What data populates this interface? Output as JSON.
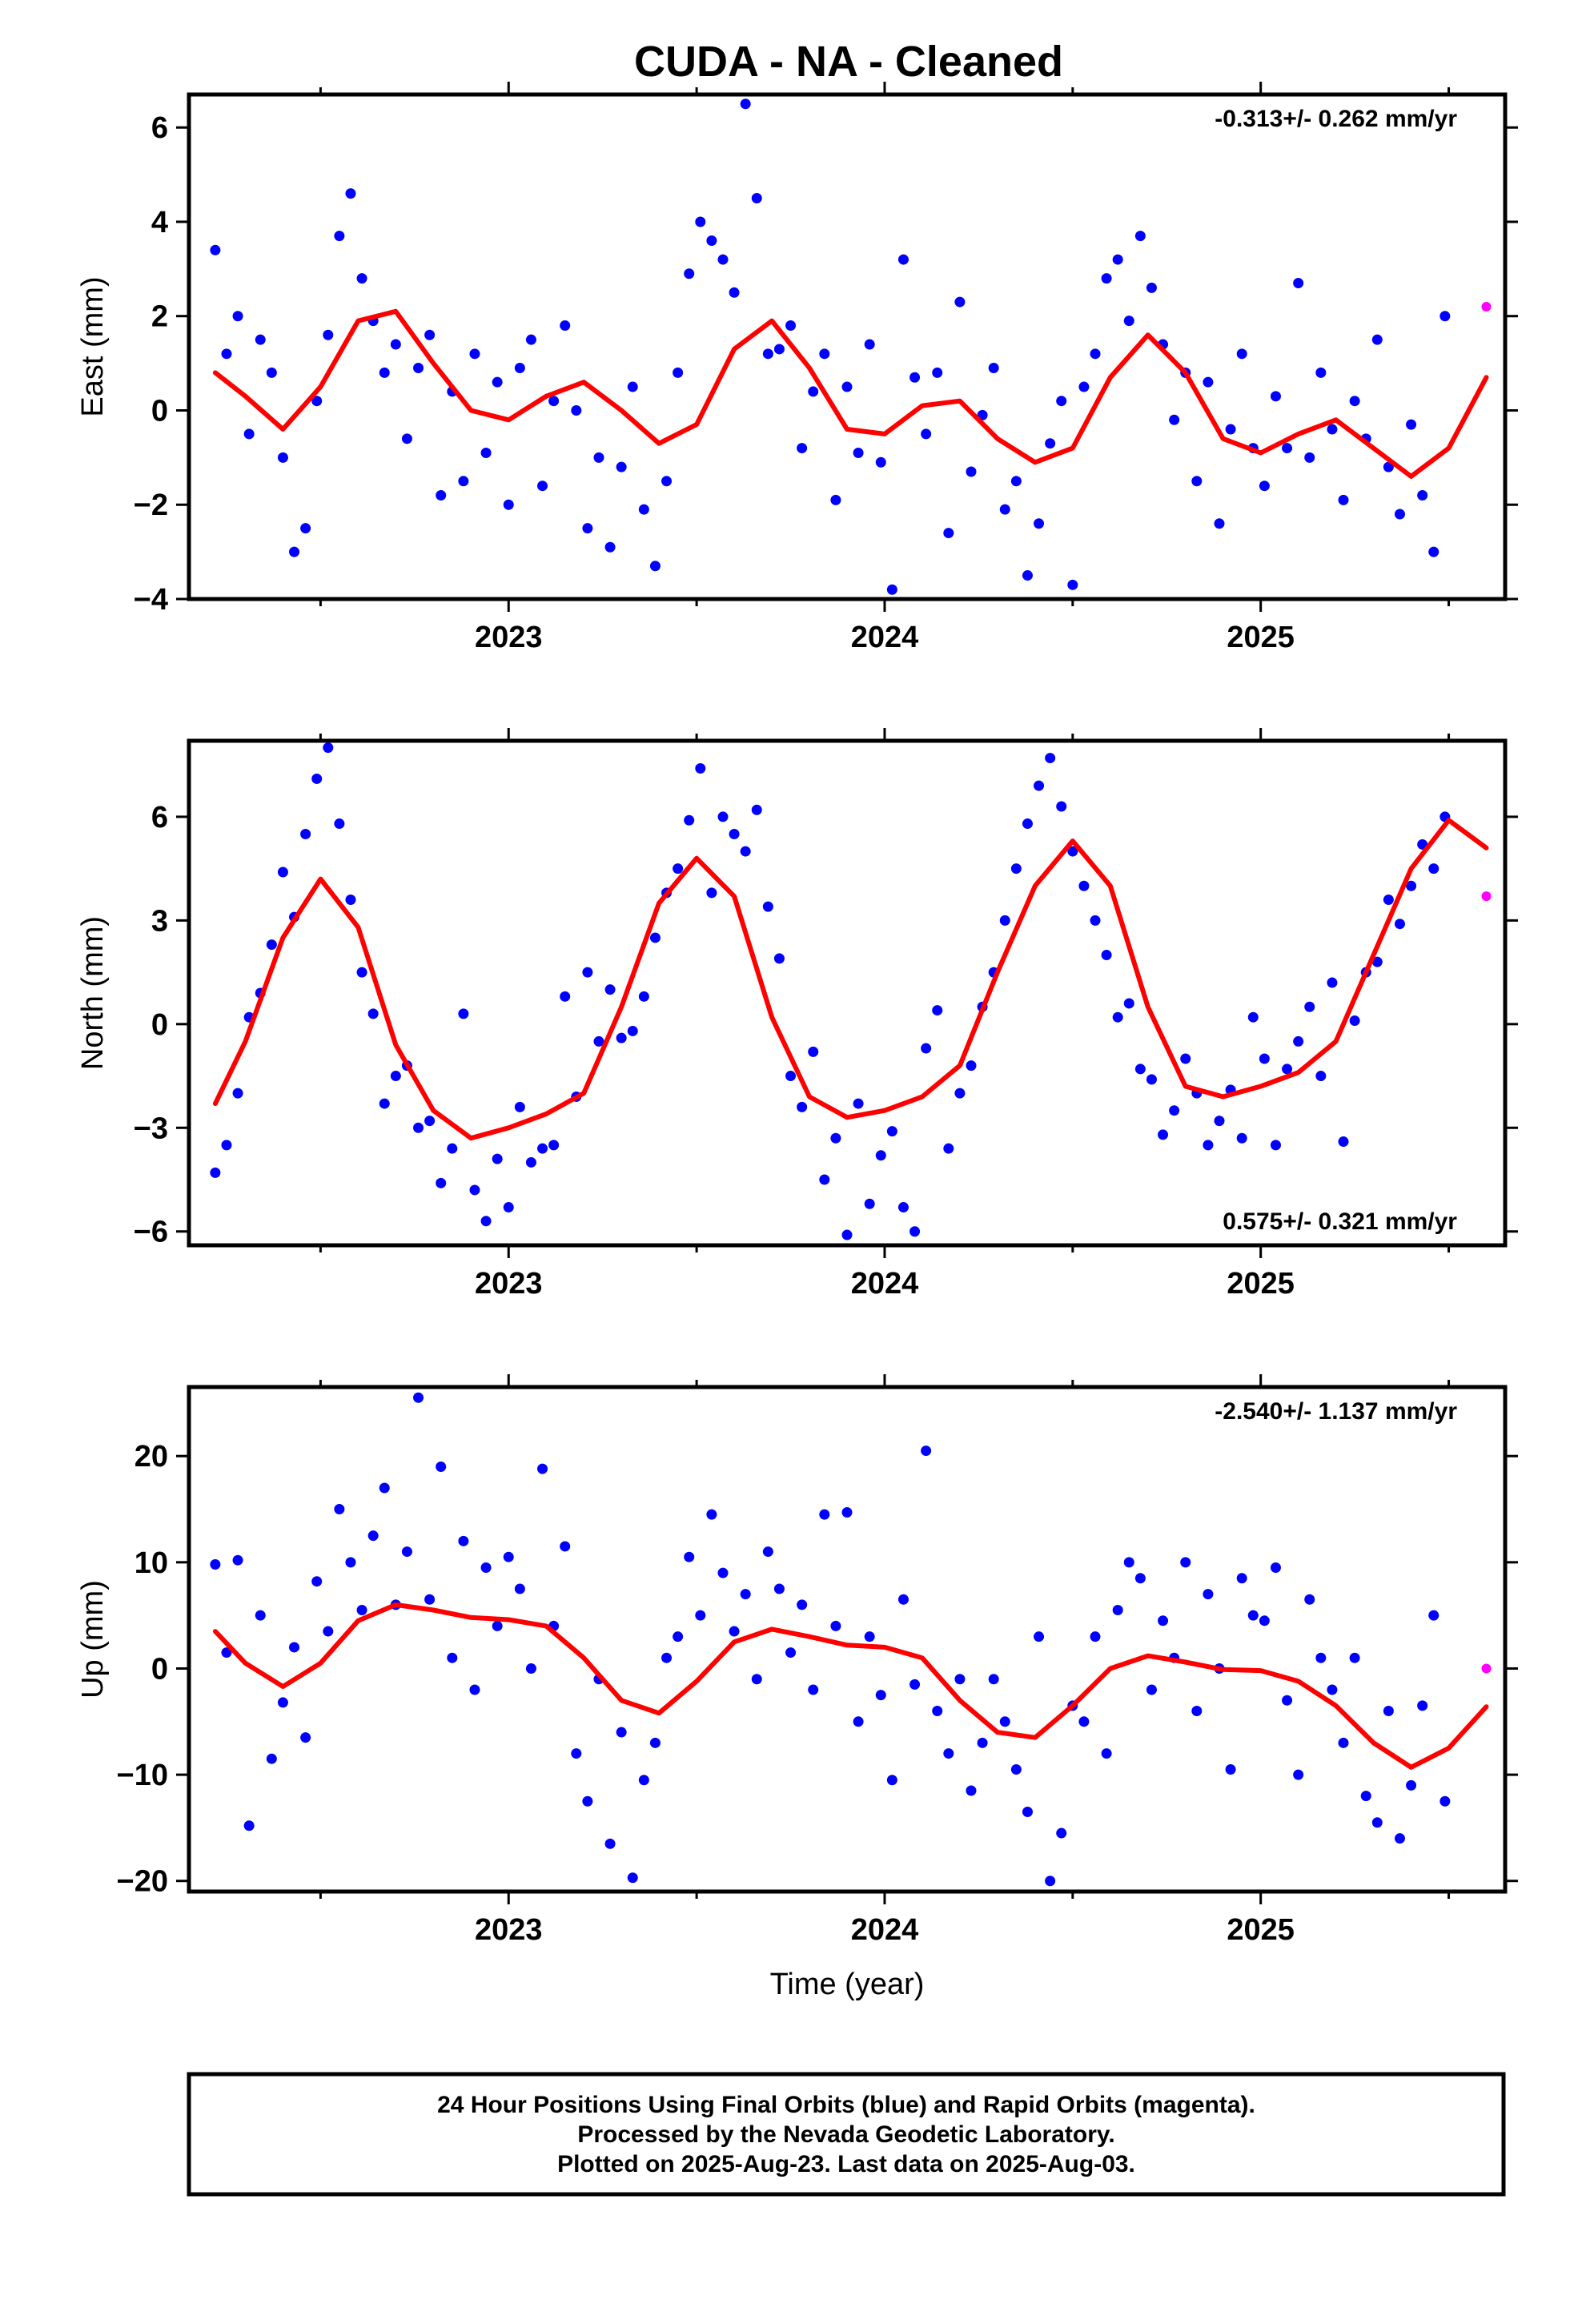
{
  "figure": {
    "title": "CUDA  - NA - Cleaned",
    "x_axis_label": "Time (year)",
    "footer": [
      "24 Hour Positions Using Final Orbits (blue) and Rapid Orbits (magenta).",
      "Processed by the Nevada Geodetic Laboratory.",
      "Plotted on 2025-Aug-23. Last data on 2025-Aug-03."
    ]
  },
  "colors": {
    "final_orbits": "#0000ff",
    "rapid_orbits": "#ff00ff",
    "model_curve": "#ff0000",
    "frame": "#000000"
  },
  "chart_data": [
    {
      "type": "scatter",
      "component": "east",
      "ylabel": "East (mm)",
      "xlabel": "",
      "xlim": [
        2022.15,
        2025.65
      ],
      "ylim": [
        -4,
        6.7
      ],
      "yticks": [
        -4,
        -2,
        0,
        2,
        4,
        6
      ],
      "yticklabels": [
        "−4",
        "−2",
        "0",
        "2",
        "4",
        "6"
      ],
      "xticks": [
        2023,
        2024,
        2025
      ],
      "xticklabels": [
        "2023",
        "2024",
        "2025"
      ],
      "rate_text": "-0.313+/- 0.262 mm/yr",
      "rate_position": "top-right",
      "model_curve": {
        "name": "",
        "x": [
          2022.22,
          2022.3,
          2022.4,
          2022.5,
          2022.6,
          2022.7,
          2022.8,
          2022.9,
          2023.0,
          2023.1,
          2023.2,
          2023.3,
          2023.4,
          2023.5,
          2023.6,
          2023.7,
          2023.8,
          2023.9,
          2024.0,
          2024.1,
          2024.2,
          2024.3,
          2024.4,
          2024.5,
          2024.6,
          2024.7,
          2024.8,
          2024.9,
          2025.0,
          2025.1,
          2025.2,
          2025.3,
          2025.4,
          2025.5,
          2025.6
        ],
        "y": [
          0.8,
          0.3,
          -0.4,
          0.5,
          1.9,
          2.1,
          1.0,
          0.0,
          -0.2,
          0.3,
          0.6,
          0.0,
          -0.7,
          -0.3,
          1.3,
          1.9,
          0.9,
          -0.4,
          -0.5,
          0.1,
          0.2,
          -0.6,
          -1.1,
          -0.8,
          0.7,
          1.6,
          0.8,
          -0.6,
          -0.9,
          -0.5,
          -0.2,
          -0.8,
          -1.4,
          -0.8,
          0.7
        ]
      },
      "final_orbit_points": {
        "x": [
          2022.22,
          2022.25,
          2022.28,
          2022.31,
          2022.34,
          2022.37,
          2022.4,
          2022.43,
          2022.46,
          2022.49,
          2022.52,
          2022.55,
          2022.58,
          2022.61,
          2022.64,
          2022.67,
          2022.7,
          2022.73,
          2022.76,
          2022.79,
          2022.82,
          2022.85,
          2022.88,
          2022.91,
          2022.94,
          2022.97,
          2023.0,
          2023.03,
          2023.06,
          2023.09,
          2023.12,
          2023.15,
          2023.18,
          2023.21,
          2023.24,
          2023.27,
          2023.3,
          2023.33,
          2023.36,
          2023.39,
          2023.42,
          2023.45,
          2023.48,
          2023.51,
          2023.54,
          2023.57,
          2023.6,
          2023.63,
          2023.66,
          2023.69,
          2023.72,
          2023.75,
          2023.78,
          2023.81,
          2023.84,
          2023.87,
          2023.9,
          2023.93,
          2023.96,
          2023.99,
          2024.02,
          2024.05,
          2024.08,
          2024.11,
          2024.14,
          2024.17,
          2024.2,
          2024.23,
          2024.26,
          2024.29,
          2024.32,
          2024.35,
          2024.38,
          2024.41,
          2024.44,
          2024.47,
          2024.5,
          2024.53,
          2024.56,
          2024.59,
          2024.62,
          2024.65,
          2024.68,
          2024.71,
          2024.74,
          2024.77,
          2024.8,
          2024.83,
          2024.86,
          2024.89,
          2024.92,
          2024.95,
          2024.98,
          2025.01,
          2025.04,
          2025.07,
          2025.1,
          2025.13,
          2025.16,
          2025.19,
          2025.22,
          2025.25,
          2025.28,
          2025.31,
          2025.34,
          2025.37,
          2025.4,
          2025.43,
          2025.46,
          2025.49
        ],
        "y": [
          3.4,
          1.2,
          2.0,
          -0.5,
          1.5,
          0.8,
          -1.0,
          -3.0,
          -2.5,
          0.2,
          1.6,
          3.7,
          4.6,
          2.8,
          1.9,
          0.8,
          1.4,
          -0.6,
          0.9,
          1.6,
          -1.8,
          0.4,
          -1.5,
          1.2,
          -0.9,
          0.6,
          -2.0,
          0.9,
          1.5,
          -1.6,
          0.2,
          1.8,
          0.0,
          -2.5,
          -1.0,
          -2.9,
          -1.2,
          0.5,
          -2.1,
          -3.3,
          -1.5,
          0.8,
          2.9,
          4.0,
          3.6,
          3.2,
          2.5,
          6.5,
          4.5,
          1.2,
          1.3,
          1.8,
          -0.8,
          0.4,
          1.2,
          -1.9,
          0.5,
          -0.9,
          1.4,
          -1.1,
          -3.8,
          3.2,
          0.7,
          -0.5,
          0.8,
          -2.6,
          2.3,
          -1.3,
          -0.1,
          0.9,
          -2.1,
          -1.5,
          -3.5,
          -2.4,
          -0.7,
          0.2,
          -3.7,
          0.5,
          1.2,
          2.8,
          3.2,
          1.9,
          3.7,
          2.6,
          1.4,
          -0.2,
          0.8,
          -1.5,
          0.6,
          -2.4,
          -0.4,
          1.2,
          -0.8,
          -1.6,
          0.3,
          -0.8,
          2.7,
          -1.0,
          0.8,
          -0.4,
          -1.9,
          0.2,
          -0.6,
          1.5,
          -1.2,
          -2.2,
          -0.3,
          -1.8,
          -3.0,
          2.0
        ]
      },
      "rapid_orbit_points": {
        "x": [
          2025.6
        ],
        "y": [
          2.2
        ]
      }
    },
    {
      "type": "scatter",
      "component": "north",
      "ylabel": "North (mm)",
      "xlabel": "",
      "xlim": [
        2022.15,
        2025.65
      ],
      "ylim": [
        -6.4,
        8.2
      ],
      "yticks": [
        -6,
        -3,
        0,
        3,
        6
      ],
      "yticklabels": [
        "−6",
        "−3",
        "0",
        "3",
        "6"
      ],
      "xticks": [
        2023,
        2024,
        2025
      ],
      "xticklabels": [
        "2023",
        "2024",
        "2025"
      ],
      "rate_text": "0.575+/- 0.321 mm/yr",
      "rate_position": "bottom-right",
      "model_curve": {
        "name": "",
        "x": [
          2022.22,
          2022.3,
          2022.4,
          2022.5,
          2022.6,
          2022.7,
          2022.8,
          2022.9,
          2023.0,
          2023.1,
          2023.2,
          2023.3,
          2023.4,
          2023.5,
          2023.6,
          2023.7,
          2023.8,
          2023.9,
          2024.0,
          2024.1,
          2024.2,
          2024.3,
          2024.4,
          2024.5,
          2024.6,
          2024.7,
          2024.8,
          2024.9,
          2025.0,
          2025.1,
          2025.2,
          2025.3,
          2025.4,
          2025.5,
          2025.6
        ],
        "y": [
          -2.3,
          -0.5,
          2.5,
          4.2,
          2.8,
          -0.6,
          -2.5,
          -3.3,
          -3.0,
          -2.6,
          -2.0,
          0.5,
          3.5,
          4.8,
          3.7,
          0.2,
          -2.1,
          -2.7,
          -2.5,
          -2.1,
          -1.2,
          1.5,
          4.0,
          5.3,
          4.0,
          0.5,
          -1.8,
          -2.1,
          -1.8,
          -1.4,
          -0.5,
          2.0,
          4.5,
          5.9,
          5.1
        ]
      },
      "final_orbit_points": {
        "x": [
          2022.22,
          2022.25,
          2022.28,
          2022.31,
          2022.34,
          2022.37,
          2022.4,
          2022.43,
          2022.46,
          2022.49,
          2022.52,
          2022.55,
          2022.58,
          2022.61,
          2022.64,
          2022.67,
          2022.7,
          2022.73,
          2022.76,
          2022.79,
          2022.82,
          2022.85,
          2022.88,
          2022.91,
          2022.94,
          2022.97,
          2023.0,
          2023.03,
          2023.06,
          2023.09,
          2023.12,
          2023.15,
          2023.18,
          2023.21,
          2023.24,
          2023.27,
          2023.3,
          2023.33,
          2023.36,
          2023.39,
          2023.42,
          2023.45,
          2023.48,
          2023.51,
          2023.54,
          2023.57,
          2023.6,
          2023.63,
          2023.66,
          2023.69,
          2023.72,
          2023.75,
          2023.78,
          2023.81,
          2023.84,
          2023.87,
          2023.9,
          2023.93,
          2023.96,
          2023.99,
          2024.02,
          2024.05,
          2024.08,
          2024.11,
          2024.14,
          2024.17,
          2024.2,
          2024.23,
          2024.26,
          2024.29,
          2024.32,
          2024.35,
          2024.38,
          2024.41,
          2024.44,
          2024.47,
          2024.5,
          2024.53,
          2024.56,
          2024.59,
          2024.62,
          2024.65,
          2024.68,
          2024.71,
          2024.74,
          2024.77,
          2024.8,
          2024.83,
          2024.86,
          2024.89,
          2024.92,
          2024.95,
          2024.98,
          2025.01,
          2025.04,
          2025.07,
          2025.1,
          2025.13,
          2025.16,
          2025.19,
          2025.22,
          2025.25,
          2025.28,
          2025.31,
          2025.34,
          2025.37,
          2025.4,
          2025.43,
          2025.46,
          2025.49
        ],
        "y": [
          -4.3,
          -3.5,
          -2.0,
          0.2,
          0.9,
          2.3,
          4.4,
          3.1,
          5.5,
          7.1,
          8.0,
          5.8,
          3.6,
          1.5,
          0.3,
          -2.3,
          -1.5,
          -1.2,
          -3.0,
          -2.8,
          -4.6,
          -3.6,
          0.3,
          -4.8,
          -5.7,
          -3.9,
          -5.3,
          -2.4,
          -4.0,
          -3.6,
          -3.5,
          0.8,
          -2.1,
          1.5,
          -0.5,
          1.0,
          -0.4,
          -0.2,
          0.8,
          2.5,
          3.8,
          4.5,
          5.9,
          7.4,
          3.8,
          6.0,
          5.5,
          5.0,
          6.2,
          3.4,
          1.9,
          -1.5,
          -2.4,
          -0.8,
          -4.5,
          -3.3,
          -6.1,
          -2.3,
          -5.2,
          -3.8,
          -3.1,
          -5.3,
          -6.0,
          -0.7,
          0.4,
          -3.6,
          -2.0,
          -1.2,
          0.5,
          1.5,
          3.0,
          4.5,
          5.8,
          6.9,
          7.7,
          6.3,
          5.0,
          4.0,
          3.0,
          2.0,
          0.2,
          0.6,
          -1.3,
          -1.6,
          -3.2,
          -2.5,
          -1.0,
          -2.0,
          -3.5,
          -2.8,
          -1.9,
          -3.3,
          0.2,
          -1.0,
          -3.5,
          -1.3,
          -0.5,
          0.5,
          -1.5,
          1.2,
          -3.4,
          0.1,
          1.5,
          1.8,
          3.6,
          2.9,
          4.0,
          5.2,
          4.5,
          6.0
        ]
      },
      "rapid_orbit_points": {
        "x": [
          2025.6
        ],
        "y": [
          3.7
        ]
      }
    },
    {
      "type": "scatter",
      "component": "up",
      "ylabel": "Up (mm)",
      "xlabel": "Time (year)",
      "xlim": [
        2022.15,
        2025.65
      ],
      "ylim": [
        -21,
        26.5
      ],
      "yticks": [
        -20,
        -10,
        0,
        10,
        20
      ],
      "yticklabels": [
        "−20",
        "−10",
        "0",
        "10",
        "20"
      ],
      "xticks": [
        2023,
        2024,
        2025
      ],
      "xticklabels": [
        "2023",
        "2024",
        "2025"
      ],
      "rate_text": "-2.540+/- 1.137 mm/yr",
      "rate_position": "top-right",
      "model_curve": {
        "name": "",
        "x": [
          2022.22,
          2022.3,
          2022.4,
          2022.5,
          2022.6,
          2022.7,
          2022.8,
          2022.9,
          2023.0,
          2023.1,
          2023.2,
          2023.3,
          2023.4,
          2023.5,
          2023.6,
          2023.7,
          2023.8,
          2023.9,
          2024.0,
          2024.1,
          2024.2,
          2024.3,
          2024.4,
          2024.5,
          2024.6,
          2024.7,
          2024.8,
          2024.9,
          2025.0,
          2025.1,
          2025.2,
          2025.3,
          2025.4,
          2025.5,
          2025.6
        ],
        "y": [
          3.5,
          0.5,
          -1.7,
          0.5,
          4.5,
          6.0,
          5.5,
          4.8,
          4.6,
          4.0,
          1.0,
          -3.0,
          -4.2,
          -1.2,
          2.5,
          3.7,
          3.0,
          2.2,
          2.0,
          1.0,
          -3.0,
          -6.0,
          -6.5,
          -3.5,
          0.0,
          1.2,
          0.6,
          -0.1,
          -0.2,
          -1.2,
          -3.5,
          -7.0,
          -9.3,
          -7.5,
          -3.6
        ]
      },
      "final_orbit_points": {
        "x": [
          2022.22,
          2022.25,
          2022.28,
          2022.31,
          2022.34,
          2022.37,
          2022.4,
          2022.43,
          2022.46,
          2022.49,
          2022.52,
          2022.55,
          2022.58,
          2022.61,
          2022.64,
          2022.67,
          2022.7,
          2022.73,
          2022.76,
          2022.79,
          2022.82,
          2022.85,
          2022.88,
          2022.91,
          2022.94,
          2022.97,
          2023.0,
          2023.03,
          2023.06,
          2023.09,
          2023.12,
          2023.15,
          2023.18,
          2023.21,
          2023.24,
          2023.27,
          2023.3,
          2023.33,
          2023.36,
          2023.39,
          2023.42,
          2023.45,
          2023.48,
          2023.51,
          2023.54,
          2023.57,
          2023.6,
          2023.63,
          2023.66,
          2023.69,
          2023.72,
          2023.75,
          2023.78,
          2023.81,
          2023.84,
          2023.87,
          2023.9,
          2023.93,
          2023.96,
          2023.99,
          2024.02,
          2024.05,
          2024.08,
          2024.11,
          2024.14,
          2024.17,
          2024.2,
          2024.23,
          2024.26,
          2024.29,
          2024.32,
          2024.35,
          2024.38,
          2024.41,
          2024.44,
          2024.47,
          2024.5,
          2024.53,
          2024.56,
          2024.59,
          2024.62,
          2024.65,
          2024.68,
          2024.71,
          2024.74,
          2024.77,
          2024.8,
          2024.83,
          2024.86,
          2024.89,
          2024.92,
          2024.95,
          2024.98,
          2025.01,
          2025.04,
          2025.07,
          2025.1,
          2025.13,
          2025.16,
          2025.19,
          2025.22,
          2025.25,
          2025.28,
          2025.31,
          2025.34,
          2025.37,
          2025.4,
          2025.43,
          2025.46,
          2025.49
        ],
        "y": [
          9.8,
          1.5,
          10.2,
          -14.8,
          5.0,
          -8.5,
          -3.2,
          2.0,
          -6.5,
          8.2,
          3.5,
          15.0,
          10.0,
          5.5,
          12.5,
          17.0,
          6.0,
          11.0,
          25.5,
          6.5,
          19.0,
          1.0,
          12.0,
          -2.0,
          9.5,
          4.0,
          10.5,
          7.5,
          0.0,
          18.8,
          4.0,
          11.5,
          -8.0,
          -12.5,
          -1.0,
          -16.5,
          -6.0,
          -19.7,
          -10.5,
          -7.0,
          1.0,
          3.0,
          10.5,
          5.0,
          14.5,
          9.0,
          3.5,
          7.0,
          -1.0,
          11.0,
          7.5,
          1.5,
          6.0,
          -2.0,
          14.5,
          4.0,
          14.7,
          -5.0,
          3.0,
          -2.5,
          -10.5,
          6.5,
          -1.5,
          20.5,
          -4.0,
          -8.0,
          -1.0,
          -11.5,
          -7.0,
          -1.0,
          -5.0,
          -9.5,
          -13.5,
          3.0,
          -20.0,
          -15.5,
          -3.5,
          -5.0,
          3.0,
          -8.0,
          5.5,
          10.0,
          8.5,
          -2.0,
          4.5,
          1.0,
          10.0,
          -4.0,
          7.0,
          0.0,
          -9.5,
          8.5,
          5.0,
          4.5,
          9.5,
          -3.0,
          -10.0,
          6.5,
          1.0,
          -2.0,
          -7.0,
          1.0,
          -12.0,
          -14.5,
          -4.0,
          -16.0,
          -11.0,
          -3.5,
          5.0,
          -12.5
        ]
      },
      "rapid_orbit_points": {
        "x": [
          2025.6
        ],
        "y": [
          0.0
        ]
      }
    }
  ]
}
